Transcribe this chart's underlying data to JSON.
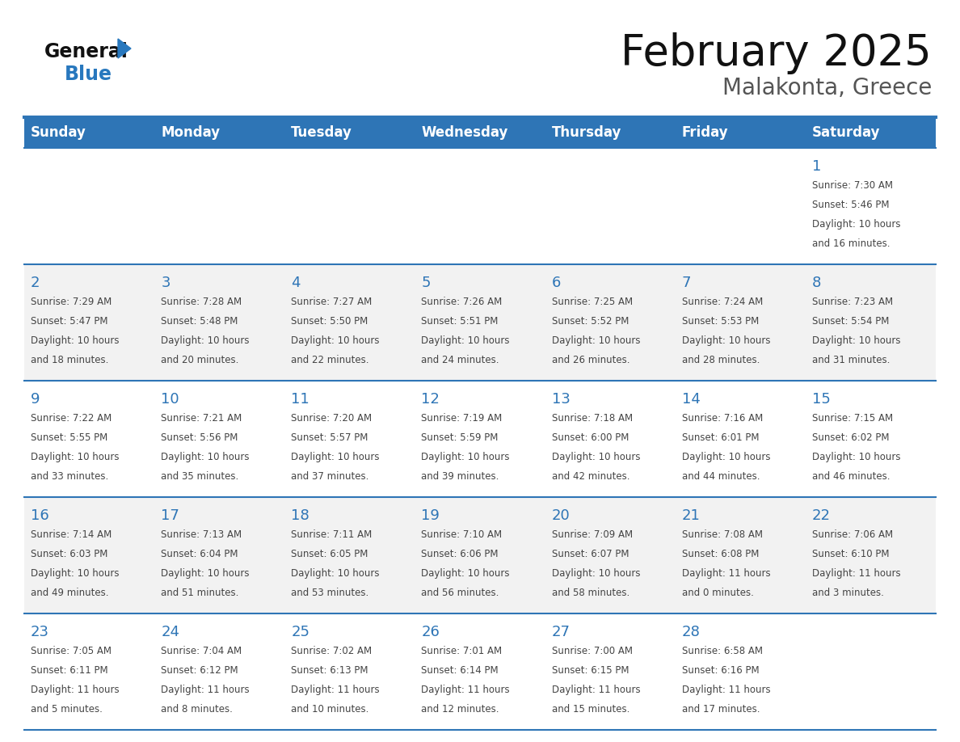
{
  "title": "February 2025",
  "subtitle": "Malakonta, Greece",
  "days_of_week": [
    "Sunday",
    "Monday",
    "Tuesday",
    "Wednesday",
    "Thursday",
    "Friday",
    "Saturday"
  ],
  "header_bg": "#2E75B6",
  "header_text": "#FFFFFF",
  "row_bg_even": "#FFFFFF",
  "row_bg_odd": "#F2F2F2",
  "separator_color": "#2E75B6",
  "day_num_color": "#2E75B6",
  "cell_text_color": "#444444",
  "logo_general_color": "#111111",
  "logo_blue_color": "#2878BE",
  "logo_triangle_color": "#2878BE",
  "calendar": [
    [
      null,
      null,
      null,
      null,
      null,
      null,
      {
        "day": "1",
        "sunrise": "Sunrise: 7:30 AM",
        "sunset": "Sunset: 5:46 PM",
        "daylight1": "Daylight: 10 hours",
        "daylight2": "and 16 minutes."
      }
    ],
    [
      {
        "day": "2",
        "sunrise": "Sunrise: 7:29 AM",
        "sunset": "Sunset: 5:47 PM",
        "daylight1": "Daylight: 10 hours",
        "daylight2": "and 18 minutes."
      },
      {
        "day": "3",
        "sunrise": "Sunrise: 7:28 AM",
        "sunset": "Sunset: 5:48 PM",
        "daylight1": "Daylight: 10 hours",
        "daylight2": "and 20 minutes."
      },
      {
        "day": "4",
        "sunrise": "Sunrise: 7:27 AM",
        "sunset": "Sunset: 5:50 PM",
        "daylight1": "Daylight: 10 hours",
        "daylight2": "and 22 minutes."
      },
      {
        "day": "5",
        "sunrise": "Sunrise: 7:26 AM",
        "sunset": "Sunset: 5:51 PM",
        "daylight1": "Daylight: 10 hours",
        "daylight2": "and 24 minutes."
      },
      {
        "day": "6",
        "sunrise": "Sunrise: 7:25 AM",
        "sunset": "Sunset: 5:52 PM",
        "daylight1": "Daylight: 10 hours",
        "daylight2": "and 26 minutes."
      },
      {
        "day": "7",
        "sunrise": "Sunrise: 7:24 AM",
        "sunset": "Sunset: 5:53 PM",
        "daylight1": "Daylight: 10 hours",
        "daylight2": "and 28 minutes."
      },
      {
        "day": "8",
        "sunrise": "Sunrise: 7:23 AM",
        "sunset": "Sunset: 5:54 PM",
        "daylight1": "Daylight: 10 hours",
        "daylight2": "and 31 minutes."
      }
    ],
    [
      {
        "day": "9",
        "sunrise": "Sunrise: 7:22 AM",
        "sunset": "Sunset: 5:55 PM",
        "daylight1": "Daylight: 10 hours",
        "daylight2": "and 33 minutes."
      },
      {
        "day": "10",
        "sunrise": "Sunrise: 7:21 AM",
        "sunset": "Sunset: 5:56 PM",
        "daylight1": "Daylight: 10 hours",
        "daylight2": "and 35 minutes."
      },
      {
        "day": "11",
        "sunrise": "Sunrise: 7:20 AM",
        "sunset": "Sunset: 5:57 PM",
        "daylight1": "Daylight: 10 hours",
        "daylight2": "and 37 minutes."
      },
      {
        "day": "12",
        "sunrise": "Sunrise: 7:19 AM",
        "sunset": "Sunset: 5:59 PM",
        "daylight1": "Daylight: 10 hours",
        "daylight2": "and 39 minutes."
      },
      {
        "day": "13",
        "sunrise": "Sunrise: 7:18 AM",
        "sunset": "Sunset: 6:00 PM",
        "daylight1": "Daylight: 10 hours",
        "daylight2": "and 42 minutes."
      },
      {
        "day": "14",
        "sunrise": "Sunrise: 7:16 AM",
        "sunset": "Sunset: 6:01 PM",
        "daylight1": "Daylight: 10 hours",
        "daylight2": "and 44 minutes."
      },
      {
        "day": "15",
        "sunrise": "Sunrise: 7:15 AM",
        "sunset": "Sunset: 6:02 PM",
        "daylight1": "Daylight: 10 hours",
        "daylight2": "and 46 minutes."
      }
    ],
    [
      {
        "day": "16",
        "sunrise": "Sunrise: 7:14 AM",
        "sunset": "Sunset: 6:03 PM",
        "daylight1": "Daylight: 10 hours",
        "daylight2": "and 49 minutes."
      },
      {
        "day": "17",
        "sunrise": "Sunrise: 7:13 AM",
        "sunset": "Sunset: 6:04 PM",
        "daylight1": "Daylight: 10 hours",
        "daylight2": "and 51 minutes."
      },
      {
        "day": "18",
        "sunrise": "Sunrise: 7:11 AM",
        "sunset": "Sunset: 6:05 PM",
        "daylight1": "Daylight: 10 hours",
        "daylight2": "and 53 minutes."
      },
      {
        "day": "19",
        "sunrise": "Sunrise: 7:10 AM",
        "sunset": "Sunset: 6:06 PM",
        "daylight1": "Daylight: 10 hours",
        "daylight2": "and 56 minutes."
      },
      {
        "day": "20",
        "sunrise": "Sunrise: 7:09 AM",
        "sunset": "Sunset: 6:07 PM",
        "daylight1": "Daylight: 10 hours",
        "daylight2": "and 58 minutes."
      },
      {
        "day": "21",
        "sunrise": "Sunrise: 7:08 AM",
        "sunset": "Sunset: 6:08 PM",
        "daylight1": "Daylight: 11 hours",
        "daylight2": "and 0 minutes."
      },
      {
        "day": "22",
        "sunrise": "Sunrise: 7:06 AM",
        "sunset": "Sunset: 6:10 PM",
        "daylight1": "Daylight: 11 hours",
        "daylight2": "and 3 minutes."
      }
    ],
    [
      {
        "day": "23",
        "sunrise": "Sunrise: 7:05 AM",
        "sunset": "Sunset: 6:11 PM",
        "daylight1": "Daylight: 11 hours",
        "daylight2": "and 5 minutes."
      },
      {
        "day": "24",
        "sunrise": "Sunrise: 7:04 AM",
        "sunset": "Sunset: 6:12 PM",
        "daylight1": "Daylight: 11 hours",
        "daylight2": "and 8 minutes."
      },
      {
        "day": "25",
        "sunrise": "Sunrise: 7:02 AM",
        "sunset": "Sunset: 6:13 PM",
        "daylight1": "Daylight: 11 hours",
        "daylight2": "and 10 minutes."
      },
      {
        "day": "26",
        "sunrise": "Sunrise: 7:01 AM",
        "sunset": "Sunset: 6:14 PM",
        "daylight1": "Daylight: 11 hours",
        "daylight2": "and 12 minutes."
      },
      {
        "day": "27",
        "sunrise": "Sunrise: 7:00 AM",
        "sunset": "Sunset: 6:15 PM",
        "daylight1": "Daylight: 11 hours",
        "daylight2": "and 15 minutes."
      },
      {
        "day": "28",
        "sunrise": "Sunrise: 6:58 AM",
        "sunset": "Sunset: 6:16 PM",
        "daylight1": "Daylight: 11 hours",
        "daylight2": "and 17 minutes."
      },
      null
    ]
  ]
}
